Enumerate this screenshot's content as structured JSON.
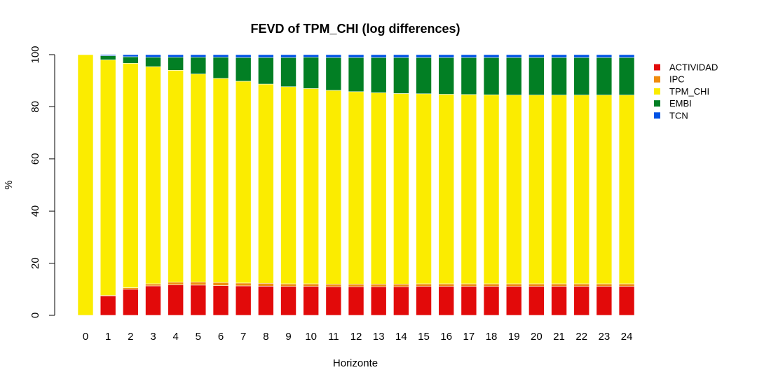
{
  "chart_data": {
    "type": "bar",
    "stacked": true,
    "title": "FEVD of TPM_CHI (log differences)",
    "xlabel": "Horizonte",
    "ylabel": "%",
    "ylim": [
      0,
      100
    ],
    "yticks": [
      "0",
      "20",
      "40",
      "60",
      "80",
      "100"
    ],
    "grid": false,
    "legend_position": "right",
    "categories": [
      "0",
      "1",
      "2",
      "3",
      "4",
      "5",
      "6",
      "7",
      "8",
      "9",
      "10",
      "11",
      "12",
      "13",
      "14",
      "15",
      "16",
      "17",
      "18",
      "19",
      "20",
      "21",
      "22",
      "23",
      "24"
    ],
    "series": [
      {
        "name": "ACTIVIDAD",
        "color": "#e20a0a",
        "values": [
          0,
          7.5,
          10.0,
          11.3,
          11.7,
          11.6,
          11.4,
          11.3,
          11.2,
          11.1,
          11.1,
          11.0,
          11.0,
          11.0,
          11.0,
          11.1,
          11.1,
          11.1,
          11.1,
          11.1,
          11.1,
          11.1,
          11.1,
          11.1,
          11.1
        ]
      },
      {
        "name": "IPC",
        "color": "#f08c0e",
        "values": [
          0,
          0.1,
          0.6,
          0.8,
          1.0,
          1.2,
          1.2,
          1.1,
          1.1,
          1.0,
          1.0,
          1.0,
          1.0,
          1.0,
          1.0,
          1.0,
          1.0,
          1.0,
          1.0,
          1.0,
          1.0,
          1.0,
          1.0,
          1.0,
          1.0
        ]
      },
      {
        "name": "TPM_CHI",
        "color": "#fbec00",
        "values": [
          100,
          90.4,
          86.1,
          83.3,
          81.3,
          79.8,
          78.3,
          77.4,
          76.4,
          75.6,
          74.9,
          74.3,
          73.8,
          73.4,
          73.1,
          72.9,
          72.7,
          72.6,
          72.5,
          72.4,
          72.4,
          72.4,
          72.4,
          72.4,
          72.4
        ]
      },
      {
        "name": "EMBI",
        "color": "#027f24",
        "values": [
          0,
          1.6,
          2.5,
          3.6,
          5.0,
          6.4,
          8.1,
          9.1,
          10.2,
          11.2,
          12.0,
          12.6,
          13.1,
          13.5,
          13.8,
          13.9,
          14.1,
          14.2,
          14.3,
          14.4,
          14.4,
          14.4,
          14.4,
          14.4,
          14.4
        ]
      },
      {
        "name": "TCN",
        "color": "#0053e5",
        "values": [
          0,
          0.4,
          0.8,
          1.0,
          1.0,
          1.0,
          1.0,
          1.1,
          1.1,
          1.1,
          1.0,
          1.1,
          1.1,
          1.1,
          1.1,
          1.1,
          1.1,
          1.1,
          1.1,
          1.1,
          1.1,
          1.1,
          1.1,
          1.1,
          1.1
        ]
      }
    ]
  }
}
